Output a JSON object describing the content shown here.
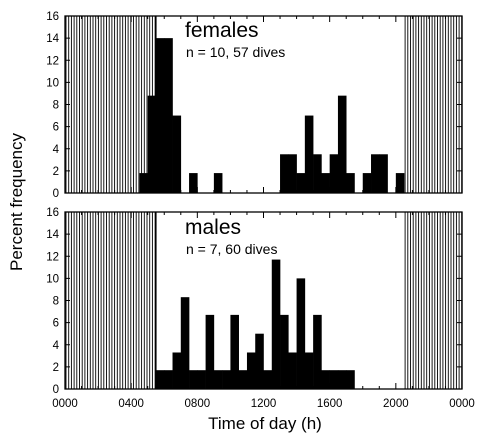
{
  "chart_data": {
    "type": "bar",
    "xlabel": "Time of day (h)",
    "ylabel": "Percent frequency",
    "xlim": [
      0,
      2400
    ],
    "ylim": [
      0,
      16
    ],
    "bin_width_h": 0.5,
    "x_ticks": [
      "0000",
      "0400",
      "0800",
      "1200",
      "1600",
      "2000",
      "0000"
    ],
    "x_tick_values": [
      0,
      400,
      800,
      1200,
      1600,
      2000,
      2400
    ],
    "y_ticks": [
      0,
      2,
      4,
      6,
      8,
      10,
      12,
      14,
      16
    ],
    "night_shading": [
      {
        "from": 0,
        "to": 530
      },
      {
        "from": 2030,
        "to": 2400
      }
    ],
    "panels": [
      {
        "title": "females",
        "subtitle": "n = 10, 57 dives",
        "bins": [
          {
            "start": 430,
            "value": 1.8
          },
          {
            "start": 500,
            "value": 8.8
          },
          {
            "start": 530,
            "value": 14.0
          },
          {
            "start": 600,
            "value": 14.0
          },
          {
            "start": 630,
            "value": 7.0
          },
          {
            "start": 730,
            "value": 1.8
          },
          {
            "start": 900,
            "value": 1.8
          },
          {
            "start": 1300,
            "value": 3.5
          },
          {
            "start": 1330,
            "value": 3.5
          },
          {
            "start": 1400,
            "value": 1.8
          },
          {
            "start": 1430,
            "value": 7.0
          },
          {
            "start": 1500,
            "value": 3.5
          },
          {
            "start": 1530,
            "value": 1.8
          },
          {
            "start": 1600,
            "value": 3.5
          },
          {
            "start": 1630,
            "value": 8.8
          },
          {
            "start": 1700,
            "value": 1.8
          },
          {
            "start": 1800,
            "value": 1.8
          },
          {
            "start": 1830,
            "value": 3.5
          },
          {
            "start": 1900,
            "value": 3.5
          },
          {
            "start": 2000,
            "value": 1.8
          }
        ]
      },
      {
        "title": "males",
        "subtitle": "n = 7, 60 dives",
        "bins": [
          {
            "start": 530,
            "value": 1.7
          },
          {
            "start": 600,
            "value": 1.7
          },
          {
            "start": 630,
            "value": 3.3
          },
          {
            "start": 700,
            "value": 8.3
          },
          {
            "start": 730,
            "value": 1.7
          },
          {
            "start": 800,
            "value": 1.7
          },
          {
            "start": 830,
            "value": 6.7
          },
          {
            "start": 900,
            "value": 1.7
          },
          {
            "start": 930,
            "value": 1.7
          },
          {
            "start": 1000,
            "value": 6.7
          },
          {
            "start": 1030,
            "value": 1.7
          },
          {
            "start": 1100,
            "value": 3.3
          },
          {
            "start": 1130,
            "value": 5.0
          },
          {
            "start": 1200,
            "value": 1.7
          },
          {
            "start": 1230,
            "value": 11.7
          },
          {
            "start": 1300,
            "value": 6.7
          },
          {
            "start": 1330,
            "value": 3.3
          },
          {
            "start": 1400,
            "value": 10.0
          },
          {
            "start": 1430,
            "value": 3.3
          },
          {
            "start": 1500,
            "value": 6.7
          },
          {
            "start": 1530,
            "value": 1.7
          },
          {
            "start": 1600,
            "value": 1.7
          },
          {
            "start": 1630,
            "value": 1.7
          },
          {
            "start": 1700,
            "value": 1.7
          }
        ]
      }
    ]
  }
}
